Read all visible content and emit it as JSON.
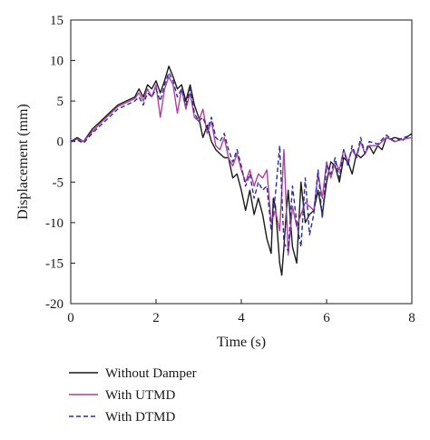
{
  "chart_data": {
    "type": "line",
    "title": "",
    "xlabel": "Time (s)",
    "ylabel": "Displacement (mm)",
    "xlim": [
      0,
      8
    ],
    "ylim": [
      -20,
      15
    ],
    "xticks": [
      0,
      2,
      4,
      6,
      8
    ],
    "yticks": [
      15,
      10,
      5,
      0,
      -5,
      -10,
      -15,
      -20
    ],
    "grid": false,
    "legend_position": "bottom-left, below plot",
    "series": [
      {
        "name": "Without Damper",
        "color": "#1a1a1a",
        "dash": "solid",
        "x": [
          0,
          0.15,
          0.3,
          0.5,
          0.7,
          0.9,
          1.1,
          1.3,
          1.5,
          1.6,
          1.7,
          1.8,
          1.9,
          2.0,
          2.1,
          2.2,
          2.3,
          2.4,
          2.5,
          2.6,
          2.7,
          2.8,
          2.9,
          3.0,
          3.1,
          3.2,
          3.3,
          3.4,
          3.5,
          3.6,
          3.7,
          3.8,
          3.9,
          4.0,
          4.1,
          4.2,
          4.3,
          4.4,
          4.5,
          4.6,
          4.7,
          4.75,
          4.8,
          4.9,
          4.95,
          5.0,
          5.05,
          5.1,
          5.2,
          5.3,
          5.35,
          5.4,
          5.5,
          5.6,
          5.7,
          5.8,
          5.9,
          6.0,
          6.1,
          6.2,
          6.3,
          6.4,
          6.5,
          6.6,
          6.7,
          6.8,
          6.9,
          7.0,
          7.1,
          7.2,
          7.3,
          7.4,
          7.5,
          7.6,
          7.8,
          8.0
        ],
        "y": [
          0,
          0.5,
          0,
          1.5,
          2.5,
          3.5,
          4.5,
          5.0,
          5.5,
          6.5,
          5.5,
          7.0,
          6.5,
          7.5,
          6.0,
          7.5,
          9.3,
          8.0,
          6.5,
          7.0,
          5.0,
          7.0,
          4.5,
          3.0,
          0.5,
          2.0,
          0.0,
          -1.0,
          -1.5,
          -2.0,
          -2.0,
          -4.5,
          -4.0,
          -6.0,
          -8.5,
          -6.0,
          -9.0,
          -7.0,
          -9.0,
          -12.0,
          -13.8,
          -7.0,
          -8.0,
          -15.0,
          -16.5,
          -13.0,
          -9.0,
          -6.0,
          -13.0,
          -15.0,
          -10.0,
          -5.0,
          -10.0,
          -9.0,
          -8.5,
          -6.0,
          -9.0,
          -5.0,
          -2.5,
          -3.0,
          -5.0,
          -2.0,
          -2.5,
          -4.0,
          -1.5,
          -2.0,
          -1.5,
          -0.5,
          -1.5,
          -0.5,
          -1.0,
          0.5,
          0.3,
          0.5,
          0.2,
          1.0
        ]
      },
      {
        "name": "With UTMD",
        "color": "#b0409a",
        "dash": "solid",
        "x": [
          0,
          0.15,
          0.3,
          0.5,
          0.7,
          0.9,
          1.1,
          1.3,
          1.5,
          1.6,
          1.7,
          1.8,
          1.9,
          2.0,
          2.1,
          2.2,
          2.3,
          2.4,
          2.5,
          2.6,
          2.7,
          2.8,
          2.9,
          3.0,
          3.1,
          3.2,
          3.3,
          3.4,
          3.5,
          3.6,
          3.7,
          3.8,
          3.9,
          4.0,
          4.1,
          4.2,
          4.3,
          4.4,
          4.5,
          4.6,
          4.7,
          4.8,
          4.9,
          5.0,
          5.1,
          5.2,
          5.3,
          5.4,
          5.5,
          5.6,
          5.7,
          5.8,
          5.9,
          6.0,
          6.1,
          6.2,
          6.3,
          6.4,
          6.5,
          6.6,
          6.7,
          6.8,
          6.9,
          7.0,
          7.2,
          7.4,
          7.6,
          7.8,
          8.0
        ],
        "y": [
          0,
          0.3,
          0,
          1.2,
          2.3,
          3.3,
          4.3,
          4.8,
          5.3,
          6.0,
          5.0,
          6.5,
          5.5,
          7.0,
          3.0,
          6.5,
          8.0,
          7.0,
          3.5,
          6.5,
          4.0,
          6.0,
          3.0,
          2.5,
          4.0,
          1.0,
          2.5,
          -0.5,
          -1.0,
          0.5,
          -2.0,
          -3.0,
          -1.5,
          -3.5,
          -5.0,
          -3.5,
          -5.5,
          -4.0,
          -4.5,
          -3.5,
          -10.0,
          -8.5,
          -11.0,
          -1.0,
          -14.0,
          -8.0,
          -10.5,
          -9.0,
          -7.5,
          -8.0,
          -8.5,
          -4.0,
          -7.0,
          -2.5,
          -4.5,
          -2.5,
          -3.5,
          -1.0,
          -2.5,
          -1.0,
          -2.0,
          0.0,
          -1.5,
          -0.5,
          -0.5,
          0.5,
          0.0,
          0.3,
          0.5
        ]
      },
      {
        "name": "With DTMD",
        "color": "#2b2f9e",
        "dash": "dashed",
        "x": [
          0,
          0.15,
          0.3,
          0.5,
          0.7,
          0.9,
          1.1,
          1.3,
          1.5,
          1.6,
          1.7,
          1.8,
          1.9,
          2.0,
          2.1,
          2.2,
          2.3,
          2.4,
          2.5,
          2.6,
          2.7,
          2.8,
          2.9,
          3.0,
          3.1,
          3.2,
          3.3,
          3.4,
          3.5,
          3.6,
          3.7,
          3.8,
          3.9,
          4.0,
          4.1,
          4.2,
          4.3,
          4.4,
          4.5,
          4.6,
          4.7,
          4.8,
          4.9,
          5.0,
          5.1,
          5.2,
          5.3,
          5.4,
          5.5,
          5.6,
          5.7,
          5.8,
          5.9,
          6.0,
          6.1,
          6.2,
          6.3,
          6.4,
          6.5,
          6.6,
          6.7,
          6.8,
          6.9,
          7.0,
          7.2,
          7.4,
          7.6,
          7.8,
          8.0
        ],
        "y": [
          0,
          0.2,
          -0.2,
          1.0,
          2.0,
          3.0,
          4.0,
          4.5,
          5.0,
          5.5,
          4.5,
          6.0,
          5.5,
          6.5,
          5.0,
          7.0,
          8.5,
          7.5,
          5.5,
          6.5,
          4.5,
          6.5,
          3.5,
          2.5,
          3.0,
          1.5,
          3.0,
          0.5,
          0.0,
          1.0,
          -1.0,
          -2.5,
          -1.0,
          -3.0,
          -5.5,
          -4.0,
          -7.0,
          -5.0,
          -6.0,
          -5.5,
          -11.0,
          -6.5,
          -0.5,
          -12.5,
          -13.5,
          -5.5,
          -10.0,
          -13.0,
          -4.5,
          -11.5,
          -9.0,
          -3.5,
          -9.5,
          -3.0,
          -4.0,
          -2.0,
          -4.5,
          -1.0,
          -3.0,
          -0.5,
          -2.0,
          0.5,
          -1.5,
          0.0,
          -0.3,
          0.8,
          0.0,
          0.5,
          0.8
        ]
      }
    ]
  }
}
